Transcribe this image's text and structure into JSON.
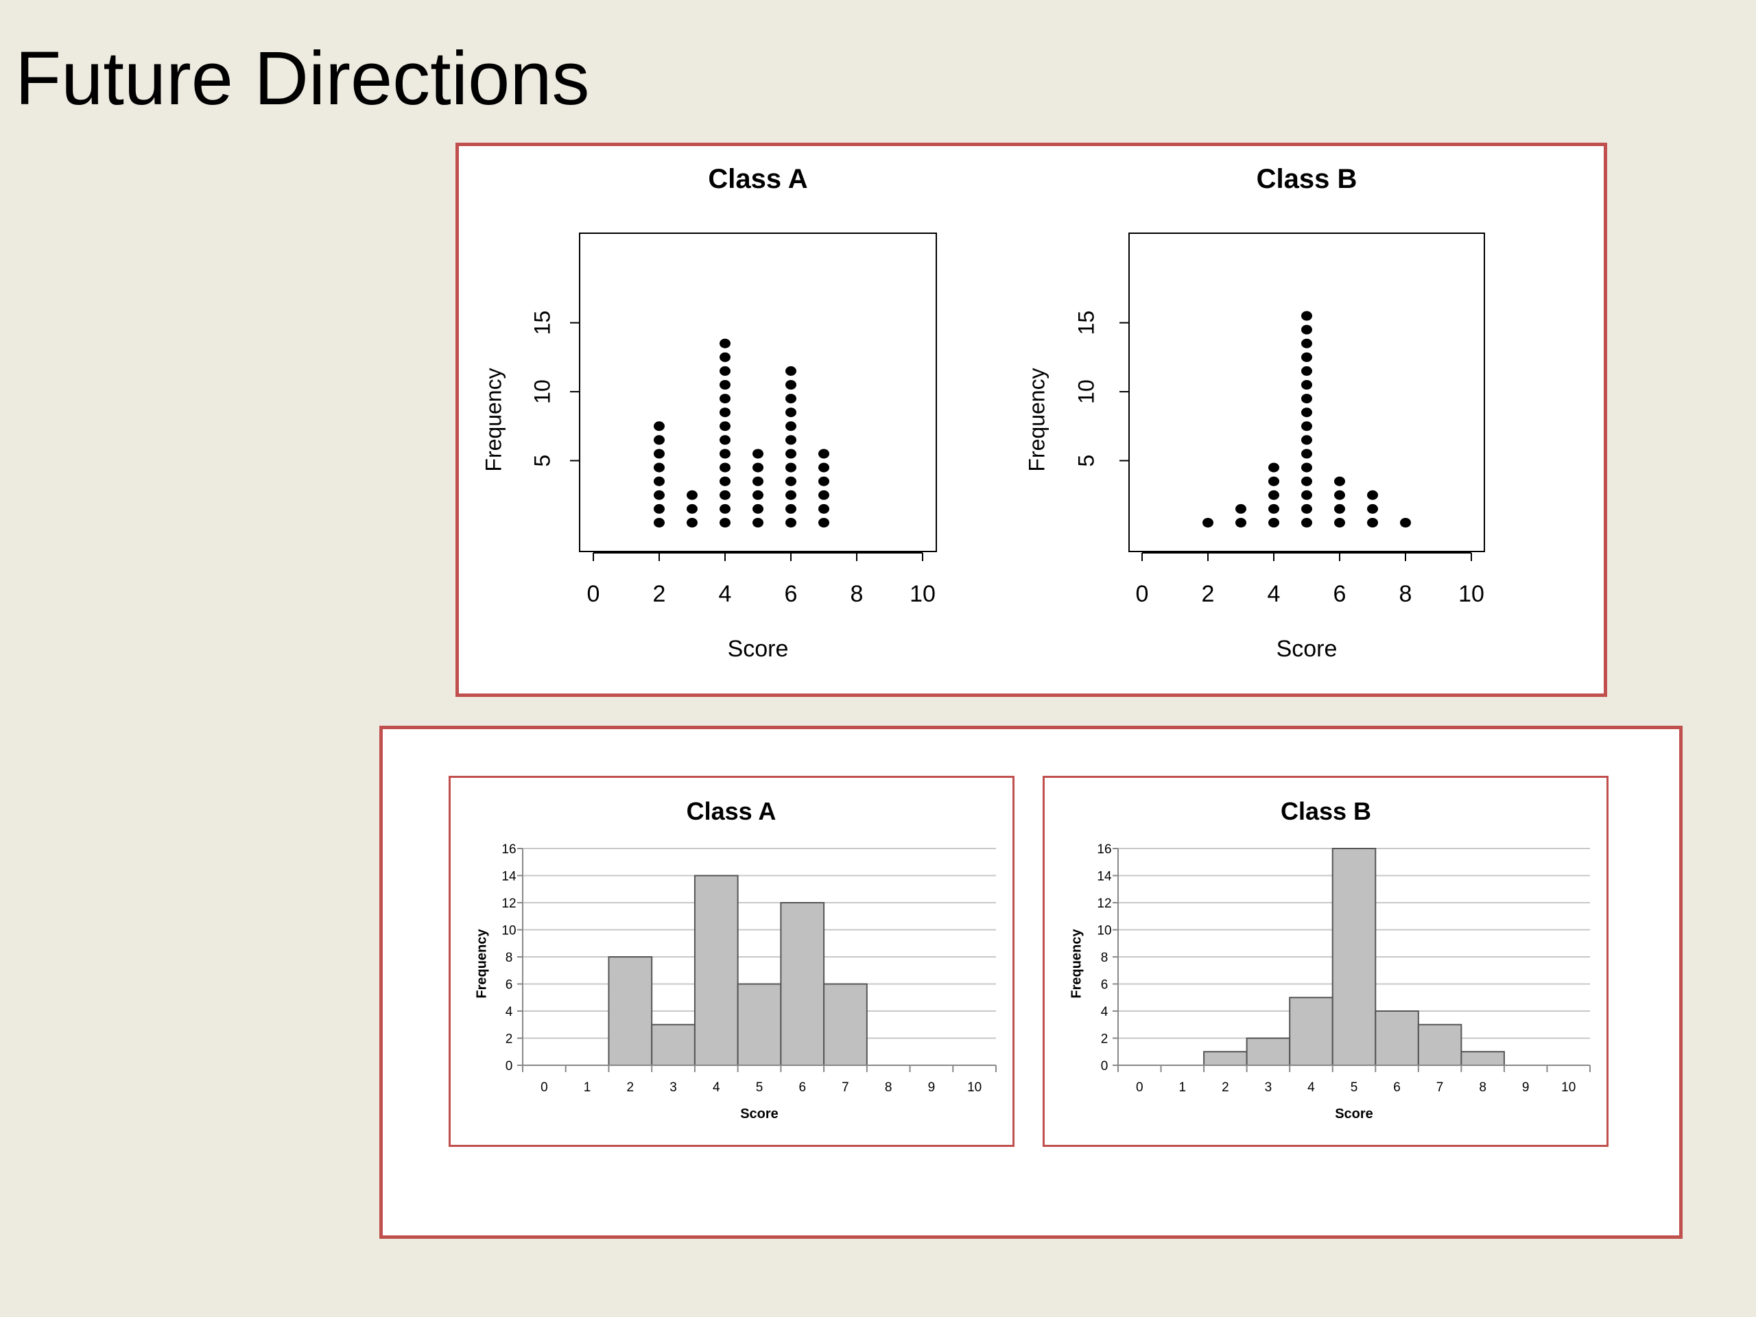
{
  "page": {
    "title": "Future Directions"
  },
  "colors": {
    "panel_border": "#c0504d",
    "bar_fill": "#c0c0c0",
    "background": "#edeae0"
  },
  "chart_data": [
    {
      "type": "scatter",
      "style": "dot plot",
      "title": "Class A",
      "xlabel": "Score",
      "ylabel": "Frequency",
      "xlim": [
        0,
        10
      ],
      "x_ticks": [
        "0",
        "2",
        "4",
        "6",
        "8",
        "10"
      ],
      "y_ticks": [
        "5",
        "10",
        "15"
      ],
      "x": [
        2,
        3,
        4,
        5,
        6,
        7
      ],
      "values": [
        8,
        3,
        14,
        6,
        12,
        6
      ]
    },
    {
      "type": "scatter",
      "style": "dot plot",
      "title": "Class B",
      "xlabel": "Score",
      "ylabel": "Frequency",
      "xlim": [
        0,
        10
      ],
      "x_ticks": [
        "0",
        "2",
        "4",
        "6",
        "8",
        "10"
      ],
      "y_ticks": [
        "5",
        "10",
        "15"
      ],
      "x": [
        2,
        3,
        4,
        5,
        6,
        7,
        8
      ],
      "values": [
        1,
        2,
        5,
        16,
        4,
        3,
        1
      ]
    },
    {
      "type": "bar",
      "style": "histogram",
      "title": "Class A",
      "xlabel": "Score",
      "ylabel": "Frequency",
      "ylim": [
        0,
        16
      ],
      "grid": true,
      "categories": [
        "0",
        "1",
        "2",
        "3",
        "4",
        "5",
        "6",
        "7",
        "8",
        "9",
        "10"
      ],
      "y_ticks": [
        "0",
        "2",
        "4",
        "6",
        "8",
        "10",
        "12",
        "14",
        "16"
      ],
      "values": [
        0,
        0,
        8,
        3,
        14,
        6,
        12,
        6,
        0,
        0,
        0
      ]
    },
    {
      "type": "bar",
      "style": "histogram",
      "title": "Class B",
      "xlabel": "Score",
      "ylabel": "Frequency",
      "ylim": [
        0,
        16
      ],
      "grid": true,
      "categories": [
        "0",
        "1",
        "2",
        "3",
        "4",
        "5",
        "6",
        "7",
        "8",
        "9",
        "10"
      ],
      "y_ticks": [
        "0",
        "2",
        "4",
        "6",
        "8",
        "10",
        "12",
        "14",
        "16"
      ],
      "values": [
        0,
        0,
        1,
        2,
        5,
        16,
        4,
        3,
        1,
        0,
        0
      ]
    }
  ]
}
